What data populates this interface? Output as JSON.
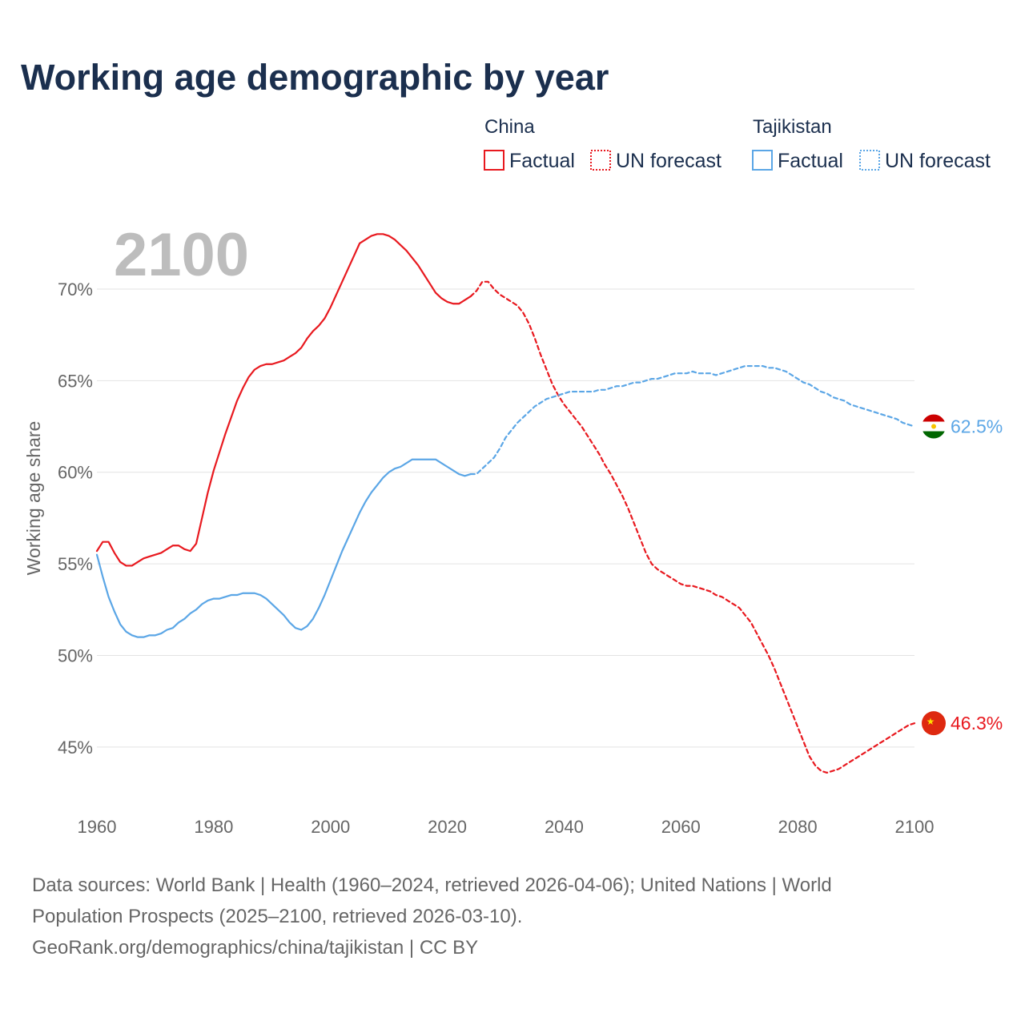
{
  "title": "Working age demographic by year",
  "year_display": "2100",
  "legend": {
    "groups": [
      {
        "name": "China",
        "color": "#e8191f",
        "factual_label": "Factual",
        "forecast_label": "UN forecast"
      },
      {
        "name": "Tajikistan",
        "color": "#5ba6e6",
        "factual_label": "Factual",
        "forecast_label": "UN forecast"
      }
    ]
  },
  "end_labels": {
    "china": "46.3%",
    "tajikistan": "62.5%"
  },
  "footer": {
    "line1": "Data sources: World Bank | Health (1960–2024, retrieved 2026-04-06); United Nations | World",
    "line2": "Population Prospects (2025–2100, retrieved 2026-03-10).",
    "line3": "GeoRank.org/demographics/china/tajikistan | CC BY"
  },
  "chart_data": {
    "type": "line",
    "title": "Working age demographic by year",
    "xlabel": "",
    "ylabel": "Working age share",
    "xlim": [
      1960,
      2100
    ],
    "ylim": [
      41.5,
      74.5
    ],
    "x_ticks": [
      1960,
      1980,
      2000,
      2020,
      2040,
      2060,
      2080,
      2100
    ],
    "x_tick_labels": [
      "1960",
      "1980",
      "2000",
      "2020",
      "2040",
      "2060",
      "2080",
      "2100"
    ],
    "y_ticks": [
      45,
      50,
      55,
      60,
      65,
      70
    ],
    "y_tick_labels": [
      "45%",
      "50%",
      "55%",
      "60%",
      "65%",
      "70%"
    ],
    "grid": true,
    "series": [
      {
        "name": "China",
        "segment": "Factual",
        "color": "#e8191f",
        "dash": false,
        "x": [
          1960,
          1961,
          1962,
          1963,
          1964,
          1965,
          1966,
          1967,
          1968,
          1969,
          1970,
          1971,
          1972,
          1973,
          1974,
          1975,
          1976,
          1977,
          1978,
          1979,
          1980,
          1981,
          1982,
          1983,
          1984,
          1985,
          1986,
          1987,
          1988,
          1989,
          1990,
          1991,
          1992,
          1993,
          1994,
          1995,
          1996,
          1997,
          1998,
          1999,
          2000,
          2001,
          2002,
          2003,
          2004,
          2005,
          2006,
          2007,
          2008,
          2009,
          2010,
          2011,
          2012,
          2013,
          2014,
          2015,
          2016,
          2017,
          2018,
          2019,
          2020,
          2021,
          2022,
          2023,
          2024
        ],
        "y": [
          55.7,
          56.2,
          56.2,
          55.6,
          55.1,
          54.9,
          54.9,
          55.1,
          55.3,
          55.4,
          55.5,
          55.6,
          55.8,
          56.0,
          56.0,
          55.8,
          55.7,
          56.1,
          57.5,
          58.9,
          60.1,
          61.1,
          62.1,
          63.0,
          63.9,
          64.6,
          65.2,
          65.6,
          65.8,
          65.9,
          65.9,
          66.0,
          66.1,
          66.3,
          66.5,
          66.8,
          67.3,
          67.7,
          68.0,
          68.4,
          69.0,
          69.7,
          70.4,
          71.1,
          71.8,
          72.5,
          72.7,
          72.9,
          73.0,
          73.0,
          72.9,
          72.7,
          72.4,
          72.1,
          71.7,
          71.3,
          70.8,
          70.3,
          69.8,
          69.5,
          69.3,
          69.2,
          69.2,
          69.4,
          69.6
        ]
      },
      {
        "name": "China",
        "segment": "UN forecast",
        "color": "#e8191f",
        "dash": true,
        "x": [
          2024,
          2025,
          2026,
          2027,
          2028,
          2029,
          2030,
          2031,
          2032,
          2033,
          2034,
          2035,
          2036,
          2037,
          2038,
          2039,
          2040,
          2041,
          2042,
          2043,
          2044,
          2045,
          2046,
          2047,
          2048,
          2049,
          2050,
          2051,
          2052,
          2053,
          2054,
          2055,
          2056,
          2057,
          2058,
          2059,
          2060,
          2061,
          2062,
          2063,
          2064,
          2065,
          2066,
          2067,
          2068,
          2069,
          2070,
          2071,
          2072,
          2073,
          2074,
          2075,
          2076,
          2077,
          2078,
          2079,
          2080,
          2081,
          2082,
          2083,
          2084,
          2085,
          2086,
          2087,
          2088,
          2089,
          2090,
          2091,
          2092,
          2093,
          2094,
          2095,
          2096,
          2097,
          2098,
          2099,
          2100
        ],
        "y": [
          69.6,
          69.9,
          70.4,
          70.4,
          70.0,
          69.7,
          69.5,
          69.3,
          69.1,
          68.7,
          68.1,
          67.3,
          66.4,
          65.6,
          64.8,
          64.2,
          63.7,
          63.3,
          62.9,
          62.5,
          62.0,
          61.5,
          61.0,
          60.4,
          59.9,
          59.3,
          58.7,
          58.0,
          57.2,
          56.4,
          55.6,
          55.0,
          54.7,
          54.5,
          54.3,
          54.1,
          53.9,
          53.8,
          53.8,
          53.7,
          53.6,
          53.5,
          53.3,
          53.2,
          53.0,
          52.8,
          52.6,
          52.2,
          51.8,
          51.2,
          50.6,
          50.0,
          49.3,
          48.5,
          47.7,
          46.9,
          46.1,
          45.3,
          44.5,
          44.0,
          43.7,
          43.6,
          43.7,
          43.8,
          44.0,
          44.2,
          44.4,
          44.6,
          44.8,
          45.0,
          45.2,
          45.4,
          45.6,
          45.8,
          46.0,
          46.2,
          46.3
        ]
      },
      {
        "name": "Tajikistan",
        "segment": "Factual",
        "color": "#5ba6e6",
        "dash": false,
        "x": [
          1960,
          1961,
          1962,
          1963,
          1964,
          1965,
          1966,
          1967,
          1968,
          1969,
          1970,
          1971,
          1972,
          1973,
          1974,
          1975,
          1976,
          1977,
          1978,
          1979,
          1980,
          1981,
          1982,
          1983,
          1984,
          1985,
          1986,
          1987,
          1988,
          1989,
          1990,
          1991,
          1992,
          1993,
          1994,
          1995,
          1996,
          1997,
          1998,
          1999,
          2000,
          2001,
          2002,
          2003,
          2004,
          2005,
          2006,
          2007,
          2008,
          2009,
          2010,
          2011,
          2012,
          2013,
          2014,
          2015,
          2016,
          2017,
          2018,
          2019,
          2020,
          2021,
          2022,
          2023,
          2024
        ],
        "y": [
          55.5,
          54.3,
          53.2,
          52.4,
          51.7,
          51.3,
          51.1,
          51.0,
          51.0,
          51.1,
          51.1,
          51.2,
          51.4,
          51.5,
          51.8,
          52.0,
          52.3,
          52.5,
          52.8,
          53.0,
          53.1,
          53.1,
          53.2,
          53.3,
          53.3,
          53.4,
          53.4,
          53.4,
          53.3,
          53.1,
          52.8,
          52.5,
          52.2,
          51.8,
          51.5,
          51.4,
          51.6,
          52.0,
          52.6,
          53.3,
          54.1,
          54.9,
          55.7,
          56.4,
          57.1,
          57.8,
          58.4,
          58.9,
          59.3,
          59.7,
          60.0,
          60.2,
          60.3,
          60.5,
          60.7,
          60.7,
          60.7,
          60.7,
          60.7,
          60.5,
          60.3,
          60.1,
          59.9,
          59.8,
          59.9
        ]
      },
      {
        "name": "Tajikistan",
        "segment": "UN forecast",
        "color": "#5ba6e6",
        "dash": true,
        "x": [
          2024,
          2025,
          2026,
          2027,
          2028,
          2029,
          2030,
          2031,
          2032,
          2033,
          2034,
          2035,
          2036,
          2037,
          2038,
          2039,
          2040,
          2041,
          2042,
          2043,
          2044,
          2045,
          2046,
          2047,
          2048,
          2049,
          2050,
          2051,
          2052,
          2053,
          2054,
          2055,
          2056,
          2057,
          2058,
          2059,
          2060,
          2061,
          2062,
          2063,
          2064,
          2065,
          2066,
          2067,
          2068,
          2069,
          2070,
          2071,
          2072,
          2073,
          2074,
          2075,
          2076,
          2077,
          2078,
          2079,
          2080,
          2081,
          2082,
          2083,
          2084,
          2085,
          2086,
          2087,
          2088,
          2089,
          2090,
          2091,
          2092,
          2093,
          2094,
          2095,
          2096,
          2097,
          2098,
          2099,
          2100
        ],
        "y": [
          59.9,
          59.9,
          60.2,
          60.5,
          60.8,
          61.3,
          61.9,
          62.3,
          62.7,
          63.0,
          63.3,
          63.6,
          63.8,
          64.0,
          64.1,
          64.2,
          64.3,
          64.4,
          64.4,
          64.4,
          64.4,
          64.4,
          64.5,
          64.5,
          64.6,
          64.7,
          64.7,
          64.8,
          64.9,
          64.9,
          65.0,
          65.1,
          65.1,
          65.2,
          65.3,
          65.4,
          65.4,
          65.4,
          65.5,
          65.4,
          65.4,
          65.4,
          65.3,
          65.4,
          65.5,
          65.6,
          65.7,
          65.8,
          65.8,
          65.8,
          65.8,
          65.7,
          65.7,
          65.6,
          65.5,
          65.3,
          65.1,
          64.9,
          64.8,
          64.6,
          64.4,
          64.3,
          64.1,
          64.0,
          63.9,
          63.7,
          63.6,
          63.5,
          63.4,
          63.3,
          63.2,
          63.1,
          63.0,
          62.9,
          62.7,
          62.6,
          62.5
        ]
      }
    ],
    "end_values": [
      {
        "name": "China",
        "year": 2100,
        "value": 46.3,
        "label": "46.3%"
      },
      {
        "name": "Tajikistan",
        "year": 2100,
        "value": 62.5,
        "label": "62.5%"
      }
    ],
    "legend_position": "top-right"
  }
}
